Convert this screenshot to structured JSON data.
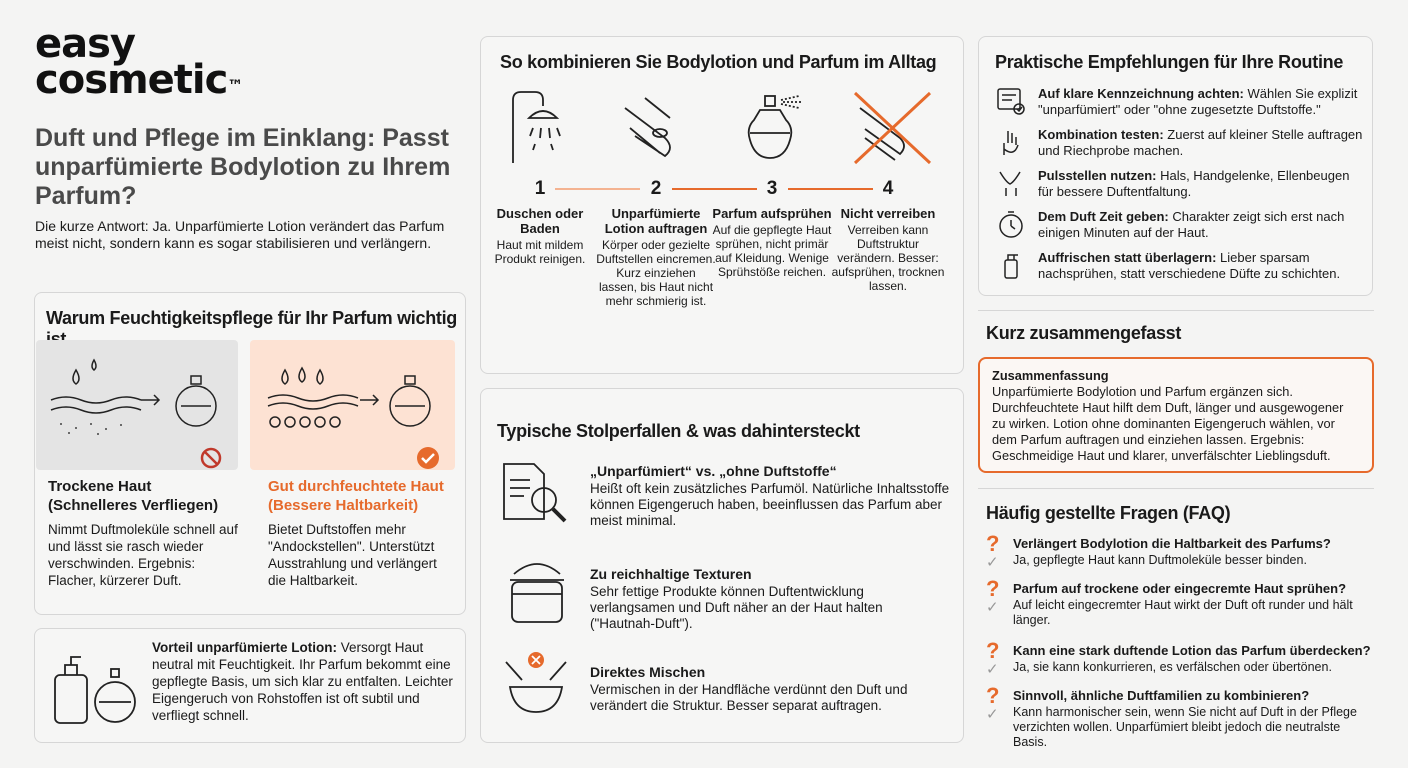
{
  "brand": {
    "line1": "easy",
    "line2": "cosmetic",
    "tm": "™"
  },
  "header": {
    "title": "Duft und Pflege im Einklang: Passt unparfümierte Bodylotion zu Ihrem Parfum?",
    "subtitle": "Die kurze Antwort: Ja. Unparfümierte Lotion verändert das Parfum meist nicht, sondern kann es sogar stabilisieren und verlängern."
  },
  "why": {
    "title": "Warum Feuchtigkeitspflege für Ihr Parfum wichtig ist",
    "dry": {
      "title": "Trockene Haut (Schnelleres Verfliegen)",
      "text": "Nimmt Duftmoleküle schnell auf und lässt sie rasch wieder verschwinden. Ergebnis: Flacher, kürzerer Duft.",
      "icon": "prohibited-icon"
    },
    "moist": {
      "title": "Gut durchfeuchtete Haut (Bessere Haltbarkeit)",
      "text": "Bietet Duftstoffen mehr \"Andockstellen\". Unterstützt Ausstrahlung und verlängert die Haltbarkeit.",
      "icon": "check-circle-icon"
    }
  },
  "advantage": {
    "label": "Vorteil unparfümierte Lotion:",
    "text": " Versorgt Haut neutral mit Feuchtigkeit. Ihr Parfum bekommt eine gepflegte Basis, um sich klar zu entfalten. Leichter Eigengeruch von Rohstoffen ist oft subtil und verfliegt schnell."
  },
  "routine": {
    "title": "So kombinieren Sie Bodylotion und Parfum im Alltag",
    "steps": [
      {
        "num": "1",
        "title": "Duschen oder Baden",
        "text": "Haut mit mildem Produkt reinigen.",
        "icon": "shower-icon"
      },
      {
        "num": "2",
        "title": "Unparfümierte Lotion auftragen",
        "text": "Körper oder gezielte Duftstellen eincremen. Kurz einziehen lassen, bis Haut nicht mehr schmierig ist.",
        "icon": "hands-lotion-icon"
      },
      {
        "num": "3",
        "title": "Parfum aufsprühen",
        "text": "Auf die gepflegte Haut sprühen, nicht primär auf Kleidung. Wenige Sprühstöße reichen.",
        "icon": "perfume-spray-icon"
      },
      {
        "num": "4",
        "title": "Nicht verreiben",
        "text": "Verreiben kann Duftstruktur verändern. Besser: aufsprühen, trocknen lassen.",
        "icon": "no-rubbing-icon"
      }
    ]
  },
  "pitfalls": {
    "title": "Typische Stolperfallen & was dahintersteckt",
    "items": [
      {
        "title": "„Unparfümiert“ vs. „ohne Duftstoffe“",
        "text": "Heißt oft kein zusätzliches Parfumöl. Natürliche Inhaltsstoffe können Eigengeruch haben, beeinflussen das Parfum aber meist minimal.",
        "icon": "document-search-icon"
      },
      {
        "title": "Zu reichhaltige Texturen",
        "text": "Sehr fettige Produkte können Duftentwicklung verlangsamen und Duft näher an der Haut halten (\"Hautnah-Duft\").",
        "icon": "cream-jar-icon"
      },
      {
        "title": "Direktes Mischen",
        "text": "Vermischen in der Handfläche verdünnt den Duft und verändert die Struktur. Besser separat auftragen.",
        "icon": "mixing-bowl-icon"
      }
    ]
  },
  "tips": {
    "title": "Praktische Empfehlungen für Ihre Routine",
    "items": [
      {
        "label": "Auf klare Kennzeichnung achten:",
        "text": " Wählen Sie explizit \"unparfümiert\" oder \"ohne zugesetzte Duftstoffe.\"",
        "icon": "label-check-icon"
      },
      {
        "label": "Kombination testen:",
        "text": " Zuerst auf kleiner Stelle auftragen und Riechprobe machen.",
        "icon": "hand-test-icon"
      },
      {
        "label": "Pulsstellen nutzen:",
        "text": " Hals, Handgelenke, Ellenbeugen für bessere Duftentfaltung.",
        "icon": "neck-icon"
      },
      {
        "label": "Dem Duft Zeit geben:",
        "text": " Charakter zeigt sich erst nach einigen Minuten auf der Haut.",
        "icon": "stopwatch-icon"
      },
      {
        "label": "Auffrischen statt überlagern:",
        "text": " Lieber sparsam nachsprühen, statt verschiedene Düfte zu schichten.",
        "icon": "spray-bottle-icon"
      }
    ]
  },
  "summary": {
    "heading": "Kurz zusammengefasst",
    "box_title": "Zusammenfassung",
    "text": "Unparfümierte Bodylotion und Parfum ergänzen sich. Durchfeuchtete Haut hilft dem Duft, länger und ausgewogener zu wirken. Lotion ohne dominanten Eigengeruch wählen, vor dem Parfum auftragen und einziehen lassen. Ergebnis: Geschmeidige Haut und klarer, unverfälschter Lieblingsduft."
  },
  "faq": {
    "title": "Häufig gestellte Fragen (FAQ)",
    "items": [
      {
        "q": "Verlängert Bodylotion die Haltbarkeit des Parfums?",
        "a": "Ja, gepflegte Haut kann Duftmoleküle besser binden."
      },
      {
        "q": "Parfum auf trockene oder eingecremte Haut sprühen?",
        "a": "Auf leicht eingecremter Haut wirkt der Duft oft runder und hält länger."
      },
      {
        "q": "Kann eine stark duftende Lotion das Parfum überdecken?",
        "a": "Ja, sie kann konkurrieren, es verfälschen oder übertönen."
      },
      {
        "q": "Sinnvoll, ähnliche Duftfamilien zu kombinieren?",
        "a": "Kann harmonischer sein, wenn Sie nicht auf Duft in der Pflege verzichten wollen. Unparfümiert bleibt jedoch die neutralste Basis."
      }
    ]
  },
  "colors": {
    "accent": "#e66a2c",
    "panel_dry": "#e4e4e4",
    "panel_moist": "#fde2d3",
    "border": "#d6d6d6"
  }
}
